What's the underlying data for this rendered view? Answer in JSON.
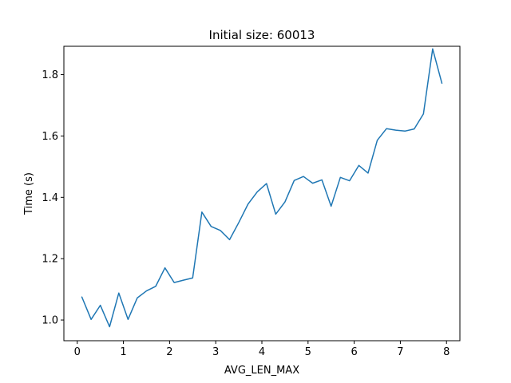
{
  "chart_data": {
    "type": "line",
    "title": "Initial size: 60013",
    "xlabel": "AVG_LEN_MAX",
    "ylabel": "Time (s)",
    "xlim": [
      -0.29,
      8.29
    ],
    "ylim": [
      0.9325,
      1.8925
    ],
    "xticks": [
      0,
      1,
      2,
      3,
      4,
      5,
      6,
      7,
      8
    ],
    "yticks": [
      1.0,
      1.2,
      1.4,
      1.6,
      1.8
    ],
    "xtick_labels": [
      "0",
      "1",
      "2",
      "3",
      "4",
      "5",
      "6",
      "7",
      "8"
    ],
    "ytick_labels": [
      "1.0",
      "1.2",
      "1.4",
      "1.6",
      "1.8"
    ],
    "grid": false,
    "series": [
      {
        "color": "#1f77b4",
        "x": [
          0.1,
          0.3,
          0.5,
          0.7,
          0.9,
          1.1,
          1.3,
          1.5,
          1.7,
          1.9,
          2.1,
          2.3,
          2.5,
          2.7,
          2.9,
          3.1,
          3.3,
          3.5,
          3.7,
          3.9,
          4.1,
          4.3,
          4.5,
          4.7,
          4.9,
          5.1,
          5.3,
          5.5,
          5.7,
          5.9,
          6.1,
          6.3,
          6.5,
          6.7,
          6.9,
          7.1,
          7.3,
          7.5,
          7.7,
          7.9
        ],
        "y": [
          1.075,
          1.002,
          1.048,
          0.978,
          1.088,
          1.002,
          1.072,
          1.095,
          1.11,
          1.17,
          1.122,
          1.13,
          1.137,
          1.352,
          1.305,
          1.292,
          1.262,
          1.318,
          1.378,
          1.418,
          1.445,
          1.345,
          1.385,
          1.455,
          1.468,
          1.446,
          1.457,
          1.371,
          1.465,
          1.454,
          1.504,
          1.479,
          1.586,
          1.624,
          1.619,
          1.616,
          1.623,
          1.672,
          1.884,
          1.772
        ]
      }
    ]
  }
}
